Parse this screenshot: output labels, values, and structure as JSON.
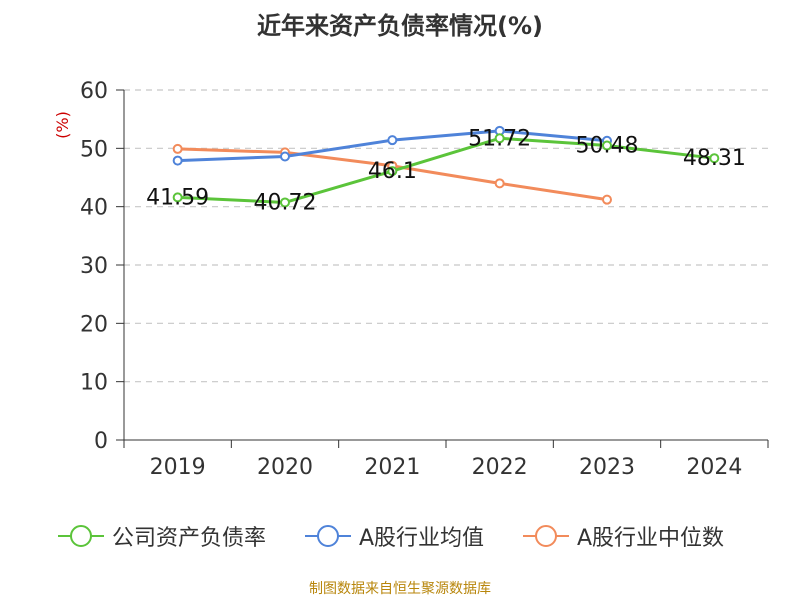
{
  "title": "近年来资产负债率情况(%)",
  "source": "制图数据来自恒生聚源数据库",
  "chart_data": {
    "type": "line",
    "title": "近年来资产负债率情况(%)",
    "ylabel": "(%)",
    "xlabel": "",
    "categories": [
      "2019",
      "2020",
      "2021",
      "2022",
      "2023",
      "2024"
    ],
    "ylim": [
      0,
      60
    ],
    "yticks": [
      0,
      10,
      20,
      30,
      40,
      50,
      60
    ],
    "grid": "horizontal dashed",
    "legend_position": "bottom",
    "series": [
      {
        "name": "公司资产负债率",
        "color": "#5bc43a",
        "values": [
          41.59,
          40.72,
          46.1,
          51.72,
          50.48,
          48.31
        ],
        "labels": [
          "41.59",
          "40.72",
          "46.1",
          "51.72",
          "50.48",
          "48.31"
        ]
      },
      {
        "name": "A股行业均值",
        "color": "#4f83d9",
        "values": [
          47.9,
          48.6,
          51.4,
          53.0,
          51.3,
          null
        ]
      },
      {
        "name": "A股行业中位数",
        "color": "#f28b5b",
        "values": [
          49.9,
          49.3,
          47.0,
          44.0,
          41.2,
          null
        ]
      }
    ]
  }
}
